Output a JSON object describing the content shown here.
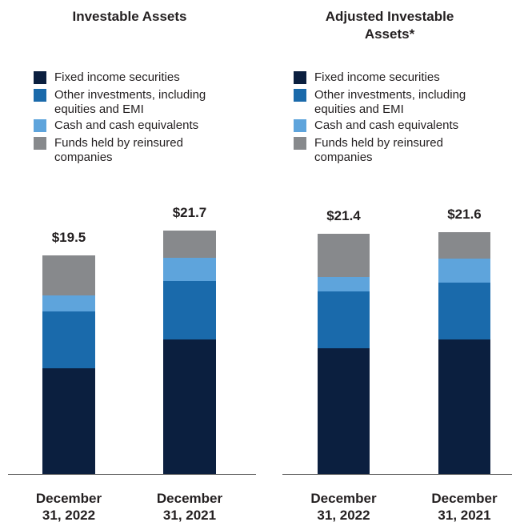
{
  "chart_data": [
    {
      "type": "bar",
      "stacked": true,
      "title": "Investable Assets",
      "categories": [
        "December 31, 2022",
        "December 31, 2021"
      ],
      "series": [
        {
          "name": "Fixed income securities",
          "color": "#0b1f3f",
          "values": [
            9.4,
            12.0
          ]
        },
        {
          "name": "Other investments, including equities and EMI",
          "color": "#1a6aab",
          "values": [
            5.1,
            5.2
          ]
        },
        {
          "name": "Cash and cash equivalents",
          "color": "#5ea4dc",
          "values": [
            1.4,
            2.1
          ]
        },
        {
          "name": "Funds held by reinsured companies",
          "color": "#87898c",
          "values": [
            3.6,
            2.4
          ]
        }
      ],
      "totals": [
        19.5,
        21.7
      ],
      "total_labels": [
        "$19.5",
        "$21.7"
      ]
    },
    {
      "type": "bar",
      "stacked": true,
      "title": "Adjusted Investable Assets*",
      "categories": [
        "December 31, 2022",
        "December 31, 2021"
      ],
      "series": [
        {
          "name": "Fixed income securities",
          "color": "#0b1f3f",
          "values": [
            11.2,
            12.0
          ]
        },
        {
          "name": "Other investments, including equities and EMI",
          "color": "#1a6aab",
          "values": [
            5.1,
            5.1
          ]
        },
        {
          "name": "Cash and cash equivalents",
          "color": "#5ea4dc",
          "values": [
            1.3,
            2.1
          ]
        },
        {
          "name": "Funds held by reinsured companies",
          "color": "#87898c",
          "values": [
            3.8,
            2.4
          ]
        }
      ],
      "totals": [
        21.4,
        21.6
      ],
      "total_labels": [
        "$21.4",
        "$21.6"
      ]
    }
  ]
}
